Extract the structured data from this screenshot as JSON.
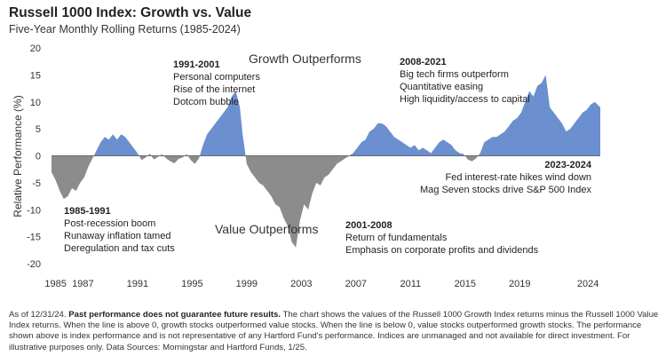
{
  "chart_data": {
    "type": "area",
    "title": "Russell 1000 Index: Growth vs. Value",
    "subtitle": "Five-Year Monthly Rolling Returns (1985-2024)",
    "ylabel": "Relative Performance (%)",
    "xlabel": "",
    "ylim": [
      -20,
      20
    ],
    "xlim": [
      1984.7,
      2024.9
    ],
    "yticks": [
      "20",
      "15",
      "10",
      "5",
      "0",
      "-5",
      "-10",
      "-15",
      "-20"
    ],
    "xticks": [
      {
        "year": 1985,
        "label": "1985"
      },
      {
        "year": 1987,
        "label": "1987"
      },
      {
        "year": 1991,
        "label": "1991"
      },
      {
        "year": 1995,
        "label": "1995"
      },
      {
        "year": 1999,
        "label": "1999"
      },
      {
        "year": 2003,
        "label": "2003"
      },
      {
        "year": 2007,
        "label": "2007"
      },
      {
        "year": 2011,
        "label": "2011"
      },
      {
        "year": 2015,
        "label": "2015"
      },
      {
        "year": 2019,
        "label": "2019"
      },
      {
        "year": 2024,
        "label": "2024"
      }
    ],
    "series": [
      {
        "name": "Russell 1000 Growth minus Russell 1000 Value",
        "positive_color": "#6b8fcf",
        "negative_color": "#8c8c8c",
        "x": [
          1984.7,
          1985.0,
          1985.3,
          1985.6,
          1985.9,
          1986.2,
          1986.5,
          1986.8,
          1987.1,
          1987.4,
          1987.7,
          1988.0,
          1988.3,
          1988.6,
          1988.9,
          1989.2,
          1989.5,
          1989.8,
          1990.1,
          1990.4,
          1990.7,
          1991.0,
          1991.3,
          1991.6,
          1991.9,
          1992.2,
          1992.5,
          1992.8,
          1993.1,
          1993.4,
          1993.7,
          1994.0,
          1994.3,
          1994.6,
          1994.9,
          1995.2,
          1995.5,
          1995.8,
          1996.1,
          1996.4,
          1996.7,
          1997.0,
          1997.3,
          1997.6,
          1997.9,
          1998.2,
          1998.5,
          1998.7,
          1999.0,
          1999.3,
          1999.6,
          1999.9,
          2000.2,
          2000.5,
          2000.8,
          2001.1,
          2001.4,
          2001.7,
          2002.0,
          2002.3,
          2002.6,
          2002.9,
          2003.2,
          2003.5,
          2003.8,
          2004.1,
          2004.4,
          2004.7,
          2005.0,
          2005.3,
          2005.6,
          2005.9,
          2006.2,
          2006.5,
          2006.8,
          2007.1,
          2007.4,
          2007.7,
          2008.0,
          2008.3,
          2008.6,
          2008.9,
          2009.2,
          2009.5,
          2009.8,
          2010.1,
          2010.4,
          2010.7,
          2011.0,
          2011.3,
          2011.6,
          2011.9,
          2012.2,
          2012.5,
          2012.8,
          2013.1,
          2013.4,
          2013.7,
          2014.0,
          2014.3,
          2014.6,
          2014.9,
          2015.2,
          2015.5,
          2015.8,
          2016.1,
          2016.4,
          2016.7,
          2017.0,
          2017.3,
          2017.6,
          2017.9,
          2018.2,
          2018.5,
          2018.8,
          2019.1,
          2019.4,
          2019.7,
          2020.0,
          2020.3,
          2020.6,
          2020.9,
          2021.2,
          2021.5,
          2021.8,
          2022.1,
          2022.4,
          2022.7,
          2023.0,
          2023.3,
          2023.6,
          2023.9,
          2024.2,
          2024.5,
          2024.9
        ],
        "values": [
          -3.0,
          -4.5,
          -6.5,
          -8.0,
          -7.5,
          -6.0,
          -6.5,
          -5.0,
          -4.0,
          -2.0,
          -0.5,
          1.0,
          2.5,
          3.5,
          3.0,
          4.0,
          3.0,
          4.0,
          3.5,
          2.5,
          1.5,
          0.5,
          -0.8,
          -0.3,
          0.4,
          -0.7,
          -0.2,
          0.3,
          -0.5,
          -1.0,
          -1.4,
          -0.6,
          -0.3,
          0.3,
          -0.8,
          -1.5,
          -0.5,
          2.0,
          4.0,
          5.0,
          6.0,
          7.0,
          8.0,
          9.0,
          11.0,
          12.0,
          9.0,
          4.0,
          -1.5,
          -3.0,
          -4.0,
          -5.0,
          -5.5,
          -6.5,
          -7.5,
          -9.0,
          -9.5,
          -11.5,
          -13.0,
          -16.0,
          -17.0,
          -12.0,
          -9.0,
          -10.0,
          -7.0,
          -5.0,
          -5.5,
          -4.0,
          -3.5,
          -2.5,
          -1.5,
          -1.0,
          -0.5,
          0.0,
          0.5,
          1.5,
          2.5,
          3.0,
          4.5,
          5.0,
          6.0,
          6.0,
          5.5,
          4.5,
          3.5,
          3.0,
          2.5,
          2.0,
          1.5,
          2.0,
          1.0,
          1.5,
          1.0,
          0.5,
          1.5,
          2.5,
          3.0,
          2.5,
          2.0,
          1.0,
          0.5,
          0.3,
          -0.7,
          -1.0,
          -0.5,
          0.5,
          2.5,
          3.0,
          3.5,
          3.5,
          4.0,
          4.5,
          5.5,
          6.5,
          7.0,
          8.0,
          10.0,
          12.0,
          11.0,
          13.0,
          13.5,
          15.0,
          9.0,
          8.0,
          7.0,
          6.0,
          4.5,
          5.0,
          6.0,
          7.0,
          8.0,
          8.5,
          9.5,
          10.0,
          9.0
        ]
      }
    ],
    "annotations": [
      {
        "id": "period-1991-2001",
        "heading": "1991-2001",
        "lines": [
          "Personal computers",
          "Rise of the internet",
          "Dotcom bubble"
        ]
      },
      {
        "id": "period-2008-2021",
        "heading": "2008-2021",
        "lines": [
          "Big tech firms outperform",
          "Quantitative easing",
          "High liquidity/access to capital"
        ]
      },
      {
        "id": "period-2023-2024",
        "heading": "2023-2024",
        "lines": [
          "Fed interest-rate hikes wind down",
          "Mag Seven stocks drive S&P 500 Index"
        ]
      },
      {
        "id": "period-1985-1991",
        "heading": "1985-1991",
        "lines": [
          "Post-recession boom",
          "Runaway inflation tamed",
          "Deregulation and tax cuts"
        ]
      },
      {
        "id": "period-2001-2008",
        "heading": "2001-2008",
        "lines": [
          "Return of fundamentals",
          "Emphasis on corporate profits and dividends"
        ]
      }
    ],
    "region_labels": {
      "growth": "Growth Outperforms",
      "value": "Value Outperforms"
    }
  },
  "footnote": {
    "date": "As of 12/31/24.",
    "bold": "Past performance does not guarantee future results.",
    "text": "The chart shows the values of the Russell 1000 Growth Index returns minus the Russell 1000 Value Index returns. When the line is above 0, growth stocks outperformed value stocks. When the line is below 0, value stocks outperformed growth stocks. The performance shown above is index performance and is not representative of any Hartford Fund's performance. Indices are unmanaged and not available for direct investment. For illustrative purposes only. Data Sources: Morningstar and Hartford Funds, 1/25."
  }
}
